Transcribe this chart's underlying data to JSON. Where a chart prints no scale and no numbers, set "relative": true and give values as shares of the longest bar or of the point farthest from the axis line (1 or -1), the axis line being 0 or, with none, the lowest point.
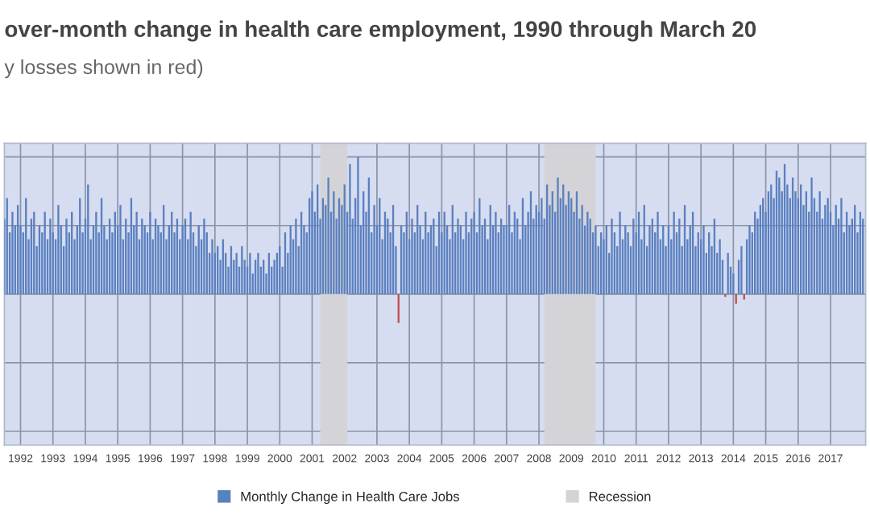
{
  "chart_data": {
    "type": "bar",
    "title": "over-month change in health care employment, 1990 through March 20",
    "subtitle": "y losses shown in red)",
    "relative": true,
    "x": [
      "1991-07",
      "1991-08",
      "1991-09",
      "1991-10",
      "1991-11",
      "1991-12",
      "1992-01",
      "1992-02",
      "1992-03",
      "1992-04",
      "1992-05",
      "1992-06",
      "1992-07",
      "1992-08",
      "1992-09",
      "1992-10",
      "1992-11",
      "1992-12",
      "1993-01",
      "1993-02",
      "1993-03",
      "1993-04",
      "1993-05",
      "1993-06",
      "1993-07",
      "1993-08",
      "1993-09",
      "1993-10",
      "1993-11",
      "1993-12",
      "1994-01",
      "1994-02",
      "1994-03",
      "1994-04",
      "1994-05",
      "1994-06",
      "1994-07",
      "1994-08",
      "1994-09",
      "1994-10",
      "1994-11",
      "1994-12",
      "1995-01",
      "1995-02",
      "1995-03",
      "1995-04",
      "1995-05",
      "1995-06",
      "1995-07",
      "1995-08",
      "1995-09",
      "1995-10",
      "1995-11",
      "1995-12",
      "1996-01",
      "1996-02",
      "1996-03",
      "1996-04",
      "1996-05",
      "1996-06",
      "1996-07",
      "1996-08",
      "1996-09",
      "1996-10",
      "1996-11",
      "1996-12",
      "1997-01",
      "1997-02",
      "1997-03",
      "1997-04",
      "1997-05",
      "1997-06",
      "1997-07",
      "1997-08",
      "1997-09",
      "1997-10",
      "1997-11",
      "1997-12",
      "1998-01",
      "1998-02",
      "1998-03",
      "1998-04",
      "1998-05",
      "1998-06",
      "1998-07",
      "1998-08",
      "1998-09",
      "1998-10",
      "1998-11",
      "1998-12",
      "1999-01",
      "1999-02",
      "1999-03",
      "1999-04",
      "1999-05",
      "1999-06",
      "1999-07",
      "1999-08",
      "1999-09",
      "1999-10",
      "1999-11",
      "1999-12",
      "2000-01",
      "2000-02",
      "2000-03",
      "2000-04",
      "2000-05",
      "2000-06",
      "2000-07",
      "2000-08",
      "2000-09",
      "2000-10",
      "2000-11",
      "2000-12",
      "2001-01",
      "2001-02",
      "2001-03",
      "2001-04",
      "2001-05",
      "2001-06",
      "2001-07",
      "2001-08",
      "2001-09",
      "2001-10",
      "2001-11",
      "2001-12",
      "2002-01",
      "2002-02",
      "2002-03",
      "2002-04",
      "2002-05",
      "2002-06",
      "2002-07",
      "2002-08",
      "2002-09",
      "2002-10",
      "2002-11",
      "2002-12",
      "2003-01",
      "2003-02",
      "2003-03",
      "2003-04",
      "2003-05",
      "2003-06",
      "2003-07",
      "2003-08",
      "2003-09",
      "2003-10",
      "2003-11",
      "2003-12",
      "2004-01",
      "2004-02",
      "2004-03",
      "2004-04",
      "2004-05",
      "2004-06",
      "2004-07",
      "2004-08",
      "2004-09",
      "2004-10",
      "2004-11",
      "2004-12",
      "2005-01",
      "2005-02",
      "2005-03",
      "2005-04",
      "2005-05",
      "2005-06",
      "2005-07",
      "2005-08",
      "2005-09",
      "2005-10",
      "2005-11",
      "2005-12",
      "2006-01",
      "2006-02",
      "2006-03",
      "2006-04",
      "2006-05",
      "2006-06",
      "2006-07",
      "2006-08",
      "2006-09",
      "2006-10",
      "2006-11",
      "2006-12",
      "2007-01",
      "2007-02",
      "2007-03",
      "2007-04",
      "2007-05",
      "2007-06",
      "2007-07",
      "2007-08",
      "2007-09",
      "2007-10",
      "2007-11",
      "2007-12",
      "2008-01",
      "2008-02",
      "2008-03",
      "2008-04",
      "2008-05",
      "2008-06",
      "2008-07",
      "2008-08",
      "2008-09",
      "2008-10",
      "2008-11",
      "2008-12",
      "2009-01",
      "2009-02",
      "2009-03",
      "2009-04",
      "2009-05",
      "2009-06",
      "2009-07",
      "2009-08",
      "2009-09",
      "2009-10",
      "2009-11",
      "2009-12",
      "2010-01",
      "2010-02",
      "2010-03",
      "2010-04",
      "2010-05",
      "2010-06",
      "2010-07",
      "2010-08",
      "2010-09",
      "2010-10",
      "2010-11",
      "2010-12",
      "2011-01",
      "2011-02",
      "2011-03",
      "2011-04",
      "2011-05",
      "2011-06",
      "2011-07",
      "2011-08",
      "2011-09",
      "2011-10",
      "2011-11",
      "2011-12",
      "2012-01",
      "2012-02",
      "2012-03",
      "2012-04",
      "2012-05",
      "2012-06",
      "2012-07",
      "2012-08",
      "2012-09",
      "2012-10",
      "2012-11",
      "2012-12",
      "2013-01",
      "2013-02",
      "2013-03",
      "2013-04",
      "2013-05",
      "2013-06",
      "2013-07",
      "2013-08",
      "2013-09",
      "2013-10",
      "2013-11",
      "2013-12",
      "2014-01",
      "2014-02",
      "2014-03",
      "2014-04",
      "2014-05",
      "2014-06",
      "2014-07",
      "2014-08",
      "2014-09",
      "2014-10",
      "2014-11",
      "2014-12",
      "2015-01",
      "2015-02",
      "2015-03",
      "2015-04",
      "2015-05",
      "2015-06",
      "2015-07",
      "2015-08",
      "2015-09",
      "2015-10",
      "2015-11",
      "2015-12",
      "2016-01",
      "2016-02",
      "2016-03",
      "2016-04",
      "2016-05",
      "2016-06",
      "2016-07",
      "2016-08",
      "2016-09",
      "2016-10",
      "2016-11",
      "2016-12",
      "2017-01",
      "2017-02",
      "2017-03",
      "2017-04",
      "2017-05",
      "2017-06",
      "2017-07",
      "2017-08",
      "2017-09",
      "2017-10",
      "2017-11",
      "2017-12",
      "2018-01"
    ],
    "series": [
      {
        "name": "Monthly Change in Health Care Jobs",
        "color": "#5b80c0",
        "values": [
          0.55,
          0.7,
          0.45,
          0.6,
          0.5,
          0.65,
          0.5,
          0.45,
          0.7,
          0.4,
          0.55,
          0.6,
          0.35,
          0.5,
          0.45,
          0.6,
          0.4,
          0.55,
          0.45,
          0.4,
          0.65,
          0.5,
          0.35,
          0.55,
          0.45,
          0.6,
          0.4,
          0.5,
          0.7,
          0.45,
          0.55,
          0.8,
          0.4,
          0.5,
          0.6,
          0.45,
          0.7,
          0.5,
          0.4,
          0.55,
          0.45,
          0.6,
          0.5,
          0.65,
          0.4,
          0.55,
          0.45,
          0.7,
          0.5,
          0.6,
          0.4,
          0.55,
          0.5,
          0.45,
          0.6,
          0.4,
          0.55,
          0.5,
          0.45,
          0.65,
          0.4,
          0.5,
          0.6,
          0.45,
          0.55,
          0.4,
          0.5,
          0.55,
          0.4,
          0.6,
          0.45,
          0.35,
          0.5,
          0.4,
          0.55,
          0.45,
          0.3,
          0.4,
          0.3,
          0.35,
          0.25,
          0.4,
          0.3,
          0.2,
          0.35,
          0.25,
          0.3,
          0.2,
          0.35,
          0.25,
          0.2,
          0.3,
          0.15,
          0.25,
          0.3,
          0.2,
          0.25,
          0.15,
          0.3,
          0.2,
          0.25,
          0.3,
          0.35,
          0.2,
          0.45,
          0.3,
          0.5,
          0.4,
          0.55,
          0.35,
          0.6,
          0.5,
          0.45,
          0.7,
          0.75,
          0.6,
          0.8,
          0.55,
          0.7,
          0.65,
          0.85,
          0.6,
          0.75,
          0.55,
          0.7,
          0.65,
          0.8,
          0.6,
          0.95,
          0.55,
          0.7,
          1.0,
          0.5,
          0.75,
          0.6,
          0.85,
          0.45,
          0.65,
          0.5,
          0.7,
          0.4,
          0.6,
          0.55,
          0.45,
          0.65,
          0.35,
          null,
          0.5,
          0.45,
          0.6,
          0.4,
          0.55,
          0.45,
          0.65,
          0.5,
          0.4,
          0.6,
          0.45,
          0.5,
          0.55,
          0.35,
          0.6,
          0.45,
          0.6,
          0.5,
          0.4,
          0.65,
          0.45,
          0.55,
          0.5,
          0.4,
          0.6,
          0.45,
          0.55,
          0.6,
          0.45,
          0.7,
          0.5,
          0.55,
          0.4,
          0.65,
          0.5,
          0.6,
          0.45,
          0.55,
          0.5,
          0.5,
          0.65,
          0.45,
          0.6,
          0.55,
          0.4,
          0.7,
          0.5,
          0.6,
          0.75,
          0.55,
          0.65,
          0.6,
          0.7,
          0.55,
          0.8,
          0.65,
          0.75,
          0.6,
          0.85,
          0.7,
          0.8,
          0.65,
          0.75,
          0.7,
          0.6,
          0.75,
          0.55,
          0.65,
          0.5,
          0.6,
          0.55,
          0.45,
          0.5,
          0.35,
          0.45,
          0.4,
          0.5,
          0.3,
          0.55,
          0.45,
          0.35,
          0.6,
          0.4,
          0.5,
          0.45,
          0.35,
          0.55,
          0.45,
          0.6,
          0.4,
          0.65,
          0.35,
          0.5,
          0.55,
          0.45,
          0.6,
          0.4,
          0.5,
          0.35,
          0.5,
          0.4,
          0.6,
          0.45,
          0.55,
          0.35,
          0.65,
          0.4,
          0.5,
          0.6,
          0.35,
          0.45,
          0.4,
          0.5,
          0.3,
          0.45,
          0.35,
          0.55,
          0.3,
          0.4,
          0.25,
          null,
          0.3,
          0.2,
          0.15,
          null,
          0.25,
          0.35,
          null,
          0.4,
          0.5,
          0.45,
          0.6,
          0.55,
          0.65,
          0.7,
          0.6,
          0.75,
          0.8,
          0.7,
          0.9,
          0.85,
          0.75,
          0.95,
          0.8,
          0.7,
          0.85,
          0.75,
          0.7,
          0.8,
          0.65,
          0.75,
          0.6,
          0.85,
          0.7,
          0.6,
          0.75,
          0.55,
          0.65,
          0.7,
          0.6,
          0.5,
          0.65,
          0.55,
          0.7,
          0.45,
          0.6,
          0.5,
          0.55,
          0.65,
          0.45,
          0.6,
          0.55
        ]
      },
      {
        "color": "#c0504d",
        "x": [
          "2003-09",
          "2013-10",
          "2014-02",
          "2014-05"
        ],
        "values": [
          -0.21,
          -0.02,
          -0.07,
          -0.04
        ]
      }
    ],
    "xlim": [
      "1991-07",
      "2018-02"
    ],
    "xticks": [
      "1992",
      "1993",
      "1994",
      "1995",
      "1996",
      "1997",
      "1998",
      "1999",
      "2000",
      "2001",
      "2002",
      "2003",
      "2004",
      "2005",
      "2006",
      "2007",
      "2008",
      "2009",
      "2010",
      "2011",
      "2012",
      "2013",
      "2014",
      "2015",
      "2016",
      "2017"
    ],
    "bands": [
      {
        "axis": "x",
        "from": "2001-04",
        "to": "2002-02",
        "label": "Recession",
        "color": "#d4d4d8"
      },
      {
        "axis": "x",
        "from": "2008-03",
        "to": "2009-10",
        "color": "#d4d4d8"
      }
    ],
    "grid": true,
    "legend": "bottom"
  }
}
